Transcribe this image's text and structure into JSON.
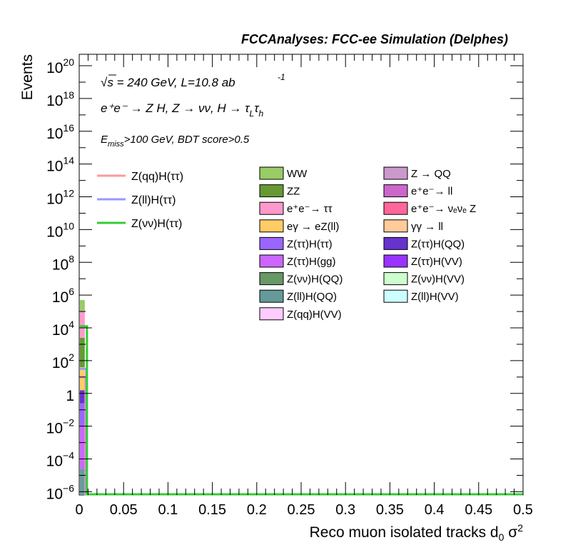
{
  "header": {
    "title": "FCCAnalyses: FCC-ee Simulation (Delphes)"
  },
  "annotations": {
    "sqrt_symbol": "√",
    "energy_text": "s = 240 GeV, L=10.8 ab",
    "lumi_exponent": "-1",
    "process_text": "e⁺e⁻ → Z H, Z → νν, H → τ",
    "tau_sub_1": "L",
    "tau_mid": "τ",
    "tau_sub_2": "h",
    "cut_e": "E",
    "cut_sub": "miss",
    "cut_rest": ">100 GeV, BDT score>0.5"
  },
  "chart_data": {
    "type": "bar",
    "stacked": true,
    "title": "FCCAnalyses: FCC-ee Simulation (Delphes)",
    "xlabel": "Reco muon isolated tracks d₀ σ²",
    "ylabel": "Events",
    "x_range": [
      0,
      0.5
    ],
    "y_range_log10": [
      -6.2,
      20.7
    ],
    "log_y": true,
    "grid": false,
    "x_ticks": [
      "0",
      "0.05",
      "0.1",
      "0.15",
      "0.2",
      "0.25",
      "0.3",
      "0.35",
      "0.4",
      "0.45",
      "0.5"
    ],
    "y_ticks": [
      {
        "base": "10",
        "exp": "20",
        "log": 20
      },
      {
        "base": "10",
        "exp": "18",
        "log": 18
      },
      {
        "base": "10",
        "exp": "16",
        "log": 16
      },
      {
        "base": "10",
        "exp": "14",
        "log": 14
      },
      {
        "base": "10",
        "exp": "12",
        "log": 12
      },
      {
        "base": "10",
        "exp": "10",
        "log": 10
      },
      {
        "base": "10",
        "exp": "8",
        "log": 8
      },
      {
        "base": "10",
        "exp": "6",
        "log": 6
      },
      {
        "base": "10",
        "exp": "4",
        "log": 4
      },
      {
        "base": "10",
        "exp": "2",
        "log": 2
      },
      {
        "base": "1",
        "exp": "",
        "log": 0
      },
      {
        "base": "10",
        "exp": "−2",
        "log": -2
      },
      {
        "base": "10",
        "exp": "−4",
        "log": -4
      },
      {
        "base": "10",
        "exp": "−6",
        "log": -6
      }
    ],
    "first_bin_stack": [
      {
        "name": "Z(ll)H(QQ)",
        "color": "#6a9b9b",
        "log_top": -4.6
      },
      {
        "name": "Z(ττ)H(gg)",
        "color": "#cc66ff",
        "log_top": -2.0
      },
      {
        "name": "Z(ττ)H(ττ)",
        "color": "#9966ff",
        "log_top": -0.6
      },
      {
        "name": "Z(ττ)H(QQ)",
        "color": "#6633cc",
        "log_top": 0.2
      },
      {
        "name": "eγ → eZ(ll)",
        "color": "#ffcc66",
        "log_top": 1.6
      },
      {
        "name": "ZZ",
        "color": "#669933",
        "log_top": 3.4
      },
      {
        "name": "e⁺e⁻→ ττ",
        "color": "#ff99cc",
        "log_top": 5.0
      },
      {
        "name": "WW",
        "color": "#99cc66",
        "log_top": 5.7
      }
    ],
    "signal_lines": [
      {
        "name": "Z(qq)H(ττ)",
        "color": "#ff9999",
        "peak_log": 1.0
      },
      {
        "name": "Z(ll)H(ττ)",
        "color": "#9999ff",
        "peak_log": 1.5
      },
      {
        "name": "Z(νν)H(ττ)",
        "color": "#33cc33",
        "peak_log": 4.1
      }
    ],
    "legend_signals": [
      {
        "name": "Z(qq)H(ττ)",
        "color": "#ff9999"
      },
      {
        "name": "Z(ll)H(ττ)",
        "color": "#9999ff"
      },
      {
        "name": "Z(νν)H(ττ)",
        "color": "#33cc33"
      }
    ],
    "legend_backgrounds": [
      {
        "name": "WW",
        "color": "#99cc66"
      },
      {
        "name": "Z → QQ",
        "color": "#cc99cc"
      },
      {
        "name": "ZZ",
        "color": "#669933"
      },
      {
        "name": "e⁺e⁻→ ll",
        "color": "#cc66cc"
      },
      {
        "name": "e⁺e⁻→ ττ",
        "color": "#ff99cc"
      },
      {
        "name": "e⁺e⁻→ νₑνₑ Z",
        "color": "#ff6699"
      },
      {
        "name": "eγ → eZ(ll)",
        "color": "#ffcc66"
      },
      {
        "name": "γγ → ll",
        "color": "#ffcc99"
      },
      {
        "name": "Z(ττ)H(ττ)",
        "color": "#9966ff"
      },
      {
        "name": "Z(ττ)H(QQ)",
        "color": "#6633cc"
      },
      {
        "name": "Z(ττ)H(gg)",
        "color": "#cc66ff"
      },
      {
        "name": "Z(ττ)H(VV)",
        "color": "#9933ff"
      },
      {
        "name": "Z(νν)H(QQ)",
        "color": "#669966"
      },
      {
        "name": "Z(νν)H(VV)",
        "color": "#ccffcc"
      },
      {
        "name": "Z(ll)H(QQ)",
        "color": "#669999"
      },
      {
        "name": "Z(ll)H(VV)",
        "color": "#ccffff"
      },
      {
        "name": "Z(qq)H(VV)",
        "color": "#ffccff"
      }
    ]
  }
}
